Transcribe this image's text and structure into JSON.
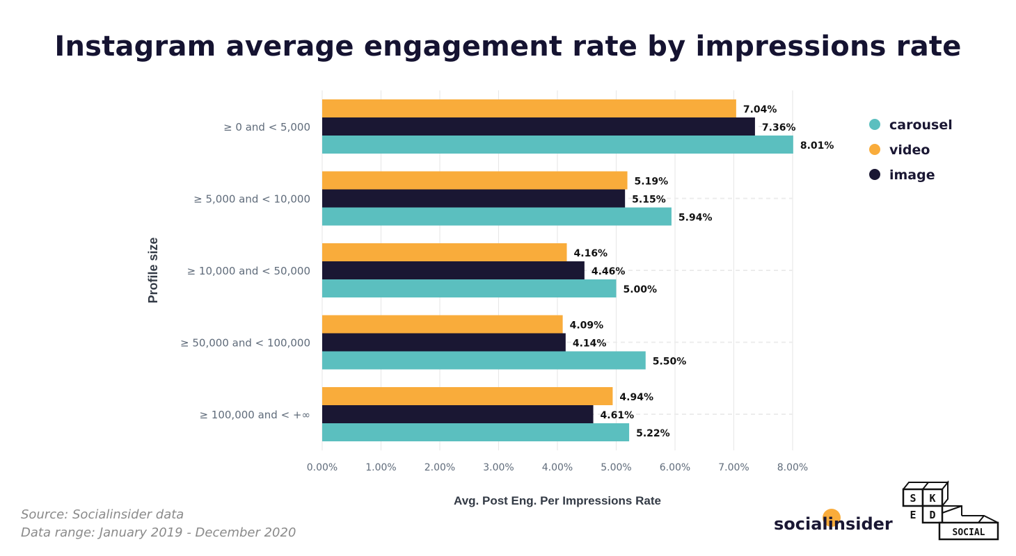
{
  "title": "Instagram average engagement rate by impressions rate",
  "source_line": "Source: Socialinsider data",
  "range_line": "Data range: January 2019 - December 2020",
  "brand": "socialinsider",
  "sked_logo": [
    "S",
    "K",
    "E",
    "D",
    "SOCIAL"
  ],
  "colors": {
    "carousel": "#5bbfbf",
    "video": "#f9ac3b",
    "image": "#1a1733",
    "grid": "#e6e6e6"
  },
  "chart_data": {
    "type": "bar",
    "orientation": "horizontal",
    "xlabel": "Avg. Post Eng. Per Impressions Rate",
    "ylabel": "Profile size",
    "xlim": [
      0,
      8
    ],
    "x_ticks": [
      "0.00%",
      "1.00%",
      "2.00%",
      "3.00%",
      "4.00%",
      "5.00%",
      "6.00%",
      "7.00%",
      "8.00%"
    ],
    "categories": [
      "≥ 0 and < 5,000",
      "≥ 5,000 and < 10,000",
      "≥ 10,000 and < 50,000",
      "≥ 50,000 and < 100,000",
      "≥ 100,000 and < +∞"
    ],
    "legend_position": "top-right",
    "legend": [
      "carousel",
      "video",
      "image"
    ],
    "series": [
      {
        "name": "video",
        "values": [
          7.04,
          5.19,
          4.16,
          4.09,
          4.94
        ],
        "labels": [
          "7.04%",
          "5.19%",
          "4.16%",
          "4.09%",
          "4.94%"
        ]
      },
      {
        "name": "image",
        "values": [
          7.36,
          5.15,
          4.46,
          4.14,
          4.61
        ],
        "labels": [
          "7.36%",
          "5.15%",
          "4.46%",
          "4.14%",
          "4.61%"
        ]
      },
      {
        "name": "carousel",
        "values": [
          8.01,
          5.94,
          5.0,
          5.5,
          5.22
        ],
        "labels": [
          "8.01%",
          "5.94%",
          "5.00%",
          "5.50%",
          "5.22%"
        ]
      }
    ]
  }
}
